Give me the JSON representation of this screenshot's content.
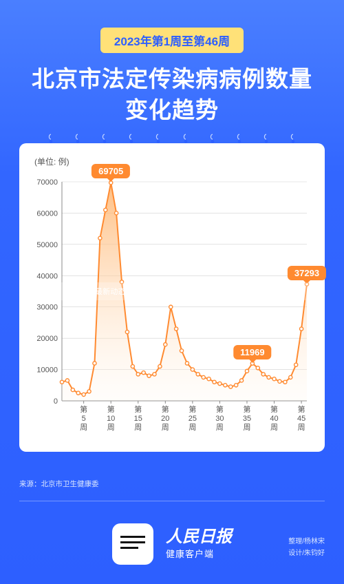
{
  "header": {
    "badge": "2023年第1周至第46周",
    "title_line1": "北京市法定传染病病例数量",
    "title_line2": "变化趋势"
  },
  "chart": {
    "type": "area",
    "unit_label": "(单位: 例)",
    "ylim": [
      0,
      70000
    ],
    "ytick_step": 10000,
    "yticks": [
      0,
      10000,
      20000,
      30000,
      40000,
      50000,
      60000,
      70000
    ],
    "x_range": [
      1,
      46
    ],
    "x_labels": [
      {
        "at": 5,
        "text": "第\n5\n周"
      },
      {
        "at": 10,
        "text": "第\n10\n周"
      },
      {
        "at": 15,
        "text": "第\n15\n周"
      },
      {
        "at": 20,
        "text": "第\n20\n周"
      },
      {
        "at": 25,
        "text": "第\n25\n周"
      },
      {
        "at": 30,
        "text": "第\n30\n周"
      },
      {
        "at": 35,
        "text": "第\n35\n周"
      },
      {
        "at": 40,
        "text": "第\n40\n周"
      },
      {
        "at": 45,
        "text": "第\n45\n周"
      }
    ],
    "values": [
      6000,
      6500,
      3500,
      2500,
      2000,
      3000,
      12000,
      52000,
      61000,
      69705,
      60000,
      38000,
      22000,
      11000,
      8500,
      9000,
      8000,
      8500,
      11000,
      18000,
      30000,
      23000,
      16000,
      12000,
      10000,
      8500,
      7500,
      7000,
      6000,
      5500,
      5000,
      4500,
      5000,
      6500,
      9500,
      11969,
      10500,
      8500,
      7500,
      7000,
      6200,
      6000,
      7500,
      11500,
      23000,
      37293
    ],
    "callouts": [
      {
        "week": 10,
        "value": 69705,
        "label": "69705"
      },
      {
        "week": 36,
        "value": 11969,
        "label": "11969"
      },
      {
        "week": 46,
        "value": 37293,
        "label": "37293"
      }
    ],
    "colors": {
      "line": "#ff8a30",
      "fill_top": "#ffb36b",
      "fill_bottom": "#fff5ea",
      "dot_stroke": "#ff8a30",
      "dot_fill": "#ffffff",
      "grid": "#d0d0d0",
      "axis": "#888888",
      "axis_text": "#555555",
      "callout_bg": "#ff8a30",
      "callout_text": "#ffffff"
    },
    "line_width": 2,
    "dot_radius": 2.6,
    "axis_fontsize": 11,
    "xlabel_fontsize": 11
  },
  "overlay_text": "北京疫情最新动态，数据、措施与市民应对全解析北京疫情最新",
  "source": "来源：北京市卫生健康委",
  "footer": {
    "brand_line1": "人民日报",
    "brand_line2": "健康客户端",
    "credit1": "整理/杨林宋",
    "credit2": "设计/朱钧好"
  },
  "bg_colors": {
    "top": "#4a7fff",
    "bottom": "#2d5fff",
    "badge_bg": "#ffe178",
    "badge_text": "#2d5fff",
    "card_bg": "#ffffff"
  }
}
